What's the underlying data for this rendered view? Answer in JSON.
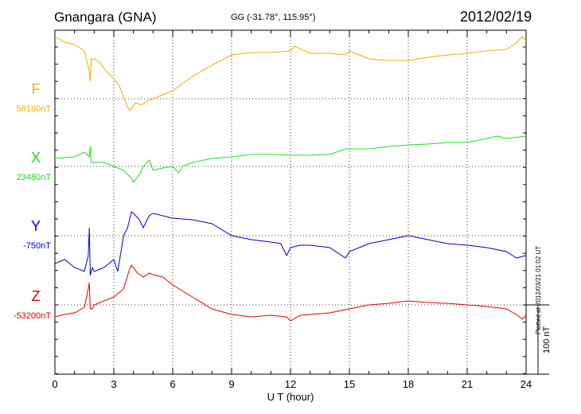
{
  "header": {
    "station": "Gnangara (GNA)",
    "coordinates": "GG (-31.78°, 115.95°)",
    "date": "2012/02/19"
  },
  "plotted_note": "Plotted at 2012/03/21 01:02 UT",
  "scale_label": "100 nT",
  "chart_data": {
    "type": "line",
    "xlabel": "U T (hour)",
    "xlim": [
      0,
      24
    ],
    "xticks": [
      "0",
      "3",
      "6",
      "9",
      "12",
      "15",
      "18",
      "21",
      "24"
    ],
    "grid": true,
    "scale_bar_nT": 100,
    "series": [
      {
        "name": "F",
        "baseline_label": "58160nT",
        "color": "#f0b000",
        "x": [
          0,
          0.5,
          1,
          1.5,
          1.75,
          1.8,
          1.85,
          2,
          2.3,
          2.6,
          3,
          3.3,
          3.6,
          3.8,
          3.9,
          4.1,
          4.4,
          4.7,
          5,
          5.5,
          6,
          7,
          8,
          9,
          10,
          11,
          12,
          12.2,
          13,
          14,
          14.8,
          15,
          16,
          17,
          18,
          19,
          20,
          21,
          22,
          23,
          23.5,
          23.8,
          24
        ],
        "y": [
          78,
          71,
          68,
          60,
          35,
          22,
          50,
          50,
          45,
          35,
          25,
          15,
          -5,
          -15,
          -12,
          -5,
          -8,
          -3,
          0,
          5,
          10,
          28,
          42,
          55,
          58,
          58,
          60,
          66,
          57,
          57,
          55,
          60,
          50,
          48,
          48,
          52,
          55,
          57,
          60,
          62,
          70,
          78,
          73
        ]
      },
      {
        "name": "X",
        "baseline_label": "23480nT",
        "color": "#22dd22",
        "x": [
          0,
          1,
          1.5,
          1.75,
          1.8,
          1.85,
          2,
          2.5,
          3,
          3.5,
          3.9,
          4,
          4.3,
          4.5,
          4.8,
          5,
          5.5,
          6,
          6.3,
          6.5,
          7,
          8,
          9,
          10,
          11,
          12,
          13,
          14,
          14.8,
          15,
          16,
          17,
          18,
          19,
          20,
          21,
          22,
          22.5,
          23,
          24
        ],
        "y": [
          10,
          12,
          18,
          12,
          25,
          5,
          5,
          5,
          0,
          -5,
          -15,
          -20,
          -10,
          0,
          8,
          -5,
          -2,
          0,
          -8,
          0,
          5,
          10,
          12,
          15,
          15,
          14,
          14,
          15,
          22,
          22,
          22,
          25,
          27,
          28,
          30,
          30,
          35,
          38,
          35,
          38
        ]
      },
      {
        "name": "Y",
        "baseline_label": "-750nT",
        "color": "#0000cc",
        "x": [
          0,
          0.5,
          1,
          1.5,
          1.7,
          1.75,
          1.8,
          1.9,
          2,
          2.5,
          3,
          3.2,
          3.5,
          3.7,
          3.8,
          3.9,
          4,
          4.3,
          4.5,
          4.8,
          5,
          6,
          7,
          8,
          9,
          10,
          11,
          11.5,
          11.8,
          12,
          12.5,
          13,
          14,
          14.8,
          15,
          16,
          17,
          18,
          19,
          20,
          21,
          22,
          23,
          23.5,
          24
        ],
        "y": [
          -35,
          -30,
          -40,
          -45,
          -25,
          10,
          -50,
          -40,
          -45,
          -40,
          -30,
          -45,
          0,
          10,
          20,
          30,
          28,
          20,
          10,
          25,
          28,
          22,
          20,
          15,
          0,
          -5,
          -8,
          -10,
          -25,
          -15,
          -12,
          -12,
          -15,
          -28,
          -20,
          -10,
          -5,
          0,
          -5,
          -10,
          -12,
          -15,
          -20,
          -28,
          -25
        ]
      },
      {
        "name": "Z",
        "baseline_label": "-53200nT",
        "color": "#e00000",
        "x": [
          0,
          0.5,
          1,
          1.5,
          1.7,
          1.75,
          1.8,
          1.9,
          2,
          2.5,
          3,
          3.5,
          3.8,
          3.9,
          4.2,
          4.5,
          4.8,
          5,
          5.5,
          6,
          7,
          8,
          9,
          10,
          11,
          11.8,
          12,
          12.5,
          13,
          14,
          15,
          16,
          17,
          18,
          19,
          20,
          21,
          22,
          23,
          23.5,
          23.8,
          24
        ],
        "y": [
          -15,
          -12,
          -10,
          -3,
          20,
          28,
          -5,
          -5,
          0,
          5,
          10,
          20,
          45,
          50,
          40,
          35,
          40,
          38,
          35,
          25,
          10,
          -5,
          -12,
          -15,
          -13,
          -15,
          -20,
          -13,
          -12,
          -10,
          -5,
          0,
          2,
          5,
          3,
          2,
          0,
          -2,
          -5,
          -12,
          -18,
          -13
        ]
      }
    ]
  }
}
